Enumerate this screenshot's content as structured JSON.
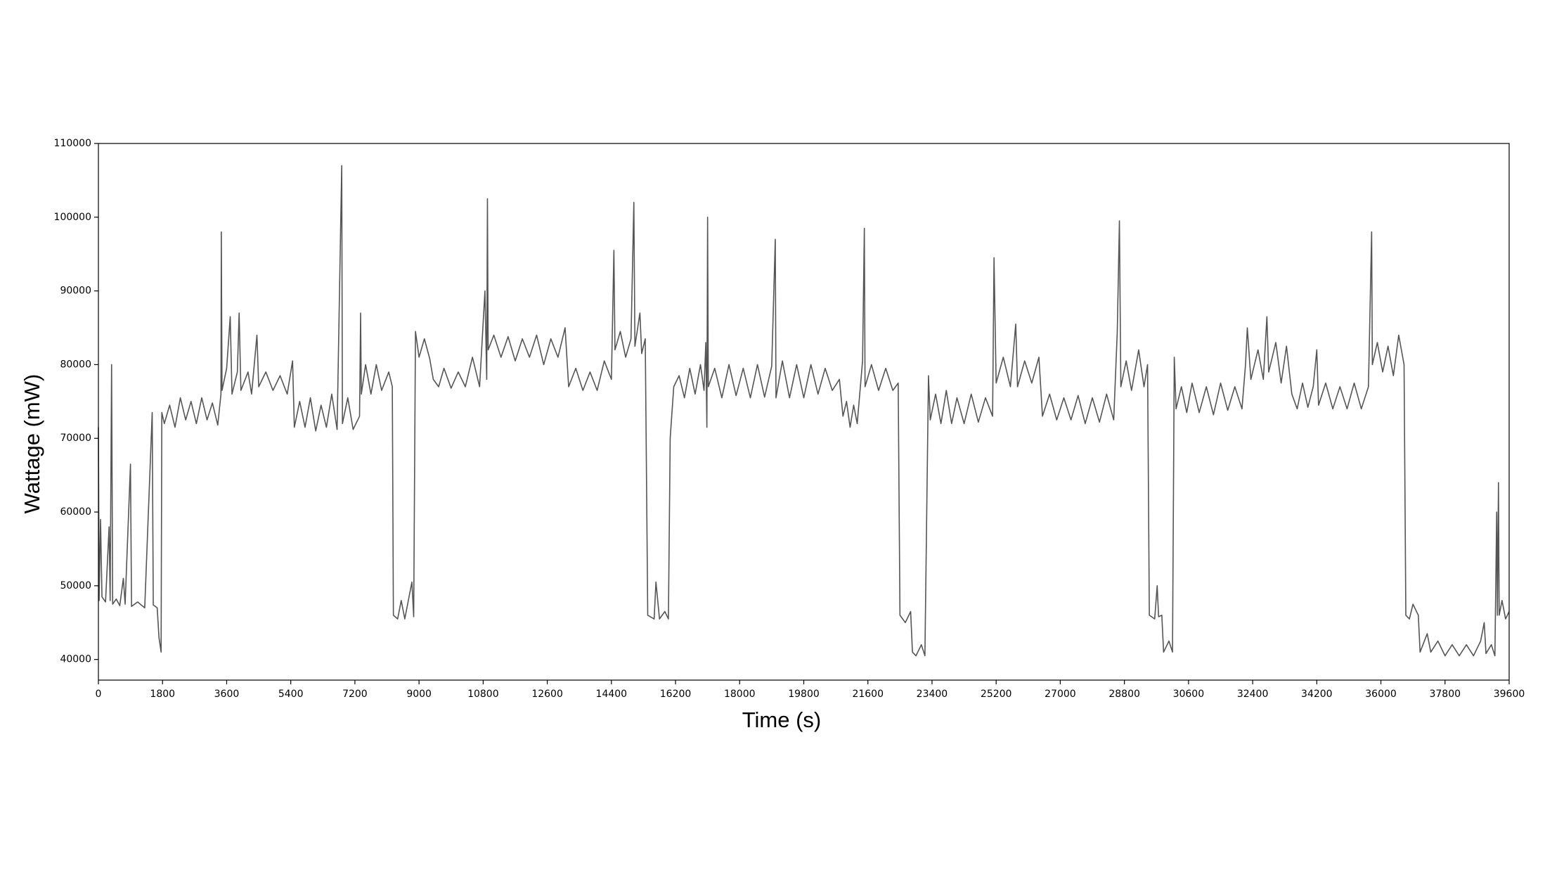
{
  "chart_data": {
    "type": "line",
    "xlabel": "Time (s)",
    "ylabel": "Wattage (mW)",
    "color": "#555555",
    "xlim": [
      0,
      39600
    ],
    "ylim": [
      37200,
      110000
    ],
    "xticks": [
      0,
      1800,
      3600,
      5400,
      7200,
      9000,
      10800,
      12600,
      14400,
      16200,
      18000,
      19800,
      21600,
      23400,
      25200,
      27000,
      28800,
      30600,
      32400,
      34200,
      36000,
      37800,
      39600
    ],
    "yticks": [
      40000,
      50000,
      60000,
      70000,
      80000,
      90000,
      100000,
      110000
    ],
    "x": [
      0,
      20,
      60,
      100,
      200,
      300,
      330,
      370,
      400,
      500,
      600,
      700,
      750,
      900,
      930,
      1100,
      1300,
      1510,
      1540,
      1650,
      1700,
      1760,
      1780,
      1850,
      2000,
      2150,
      2300,
      2450,
      2600,
      2750,
      2900,
      3050,
      3200,
      3350,
      3440,
      3450,
      3470,
      3600,
      3700,
      3750,
      3900,
      3950,
      4000,
      4200,
      4300,
      4450,
      4500,
      4700,
      4900,
      5100,
      5300,
      5450,
      5500,
      5650,
      5800,
      5950,
      6100,
      6250,
      6400,
      6550,
      6700,
      6830,
      6850,
      7000,
      7150,
      7330,
      7360,
      7380,
      7500,
      7650,
      7800,
      7950,
      8150,
      8250,
      8280,
      8400,
      8500,
      8600,
      8800,
      8850,
      8900,
      9000,
      9150,
      9300,
      9400,
      9550,
      9700,
      9900,
      10100,
      10300,
      10500,
      10700,
      10850,
      10900,
      10920,
      10940,
      11100,
      11300,
      11500,
      11700,
      11900,
      12100,
      12300,
      12500,
      12700,
      12900,
      13100,
      13200,
      13400,
      13600,
      13800,
      14000,
      14200,
      14400,
      14470,
      14500,
      14650,
      14800,
      14950,
      15030,
      15060,
      15200,
      15250,
      15350,
      15420,
      15600,
      15650,
      15750,
      15900,
      16000,
      16050,
      16150,
      16300,
      16450,
      16600,
      16750,
      16900,
      17000,
      17050,
      17080,
      17100,
      17120,
      17300,
      17500,
      17700,
      17900,
      18100,
      18300,
      18500,
      18700,
      18900,
      19000,
      19020,
      19200,
      19400,
      19600,
      19800,
      20000,
      20200,
      20400,
      20600,
      20800,
      20900,
      21000,
      21100,
      21200,
      21300,
      21450,
      21500,
      21520,
      21700,
      21900,
      22100,
      22300,
      22450,
      22500,
      22650,
      22800,
      22850,
      22950,
      23100,
      23200,
      23300,
      23350,
      23500,
      23650,
      23800,
      23950,
      24100,
      24300,
      24500,
      24700,
      24900,
      25100,
      25140,
      25200,
      25400,
      25600,
      25750,
      25800,
      26000,
      26200,
      26400,
      26500,
      26700,
      26900,
      27100,
      27300,
      27500,
      27700,
      27900,
      28100,
      28300,
      28500,
      28600,
      28660,
      28700,
      28850,
      29000,
      29200,
      29350,
      29450,
      29500,
      29650,
      29720,
      29760,
      29850,
      29900,
      30050,
      30150,
      30200,
      30250,
      30400,
      30550,
      30700,
      30900,
      31100,
      31300,
      31500,
      31700,
      31900,
      32100,
      32200,
      32250,
      32350,
      32550,
      32700,
      32800,
      32850,
      33050,
      33200,
      33350,
      33500,
      33650,
      33800,
      33950,
      34100,
      34200,
      34250,
      34450,
      34650,
      34850,
      35050,
      35250,
      35450,
      35650,
      35740,
      35760,
      35900,
      36050,
      36200,
      36350,
      36500,
      36650,
      36700,
      36800,
      36900,
      37050,
      37100,
      37300,
      37400,
      37600,
      37800,
      38000,
      38200,
      38400,
      38600,
      38800,
      38900,
      38950,
      39100,
      39200,
      39250,
      39270,
      39300,
      39320,
      39400,
      39500,
      39600
    ],
    "values": [
      71500,
      48000,
      59000,
      48500,
      47800,
      58000,
      48000,
      80000,
      47500,
      48200,
      47300,
      51000,
      47500,
      66500,
      47200,
      47800,
      47000,
      73500,
      47400,
      47000,
      43000,
      41000,
      73500,
      72000,
      74500,
      71500,
      75500,
      72500,
      75000,
      72000,
      75500,
      72500,
      74800,
      71800,
      76000,
      98000,
      76500,
      79500,
      86500,
      76000,
      79000,
      87000,
      76500,
      79000,
      76000,
      84000,
      77000,
      79000,
      76500,
      78500,
      76000,
      80500,
      71500,
      75000,
      71500,
      75500,
      71000,
      74500,
      71500,
      76000,
      71200,
      107000,
      72000,
      75500,
      71200,
      73000,
      87000,
      76000,
      80000,
      76000,
      80000,
      76500,
      79000,
      77000,
      46000,
      45500,
      48000,
      45500,
      50500,
      45800,
      84500,
      81000,
      83500,
      80800,
      78000,
      77000,
      79500,
      76800,
      79000,
      77000,
      81000,
      77000,
      90000,
      78000,
      102500,
      82000,
      84000,
      81000,
      83800,
      80500,
      83500,
      81000,
      84000,
      80000,
      83500,
      81000,
      85000,
      77000,
      79500,
      76500,
      79000,
      76500,
      80500,
      78000,
      95500,
      82000,
      84500,
      81000,
      83500,
      102000,
      82500,
      87000,
      81500,
      83500,
      46000,
      45500,
      50500,
      45500,
      46500,
      45500,
      70000,
      77000,
      78500,
      75500,
      79500,
      76000,
      80000,
      76500,
      83000,
      71500,
      100000,
      77000,
      79500,
      75500,
      80000,
      75800,
      79500,
      75500,
      80000,
      75600,
      79800,
      97000,
      75500,
      80500,
      75500,
      80000,
      75500,
      80000,
      76000,
      79500,
      76500,
      78000,
      73000,
      75000,
      71500,
      74500,
      72000,
      80500,
      98500,
      77000,
      80000,
      76500,
      79500,
      76500,
      77500,
      46000,
      45000,
      46500,
      41000,
      40500,
      42000,
      40500,
      78500,
      72500,
      76000,
      72000,
      76500,
      72000,
      75500,
      72000,
      76000,
      72200,
      75500,
      73000,
      94500,
      77500,
      81000,
      77000,
      85500,
      77000,
      80500,
      77500,
      81000,
      73000,
      76000,
      72500,
      75500,
      72500,
      75800,
      72000,
      75500,
      72200,
      76000,
      72500,
      84500,
      99500,
      77000,
      80500,
      76500,
      82000,
      77000,
      80000,
      46000,
      45500,
      50000,
      45800,
      46000,
      41000,
      42500,
      41000,
      81000,
      74000,
      77000,
      73500,
      77500,
      73500,
      77000,
      73200,
      77500,
      73800,
      77000,
      74000,
      80000,
      85000,
      78000,
      82000,
      78000,
      86500,
      79000,
      83000,
      77500,
      82500,
      76000,
      74000,
      77500,
      74200,
      77000,
      82000,
      74500,
      77500,
      74000,
      77000,
      74000,
      77500,
      74000,
      77000,
      98000,
      80000,
      83000,
      79000,
      82500,
      78500,
      84000,
      80000,
      46000,
      45500,
      47500,
      46000,
      41000,
      43500,
      41000,
      42500,
      40500,
      42000,
      40500,
      42000,
      40500,
      42500,
      45000,
      40800,
      42000,
      40500,
      60000,
      46000,
      64000,
      46000,
      48000,
      45500,
      46500
    ]
  }
}
